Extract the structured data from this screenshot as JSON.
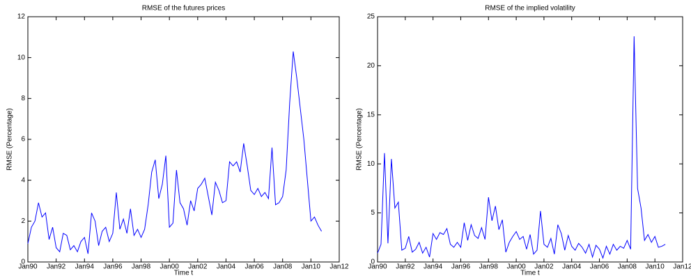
{
  "chart_data": [
    {
      "type": "line",
      "title": "RMSE of the futures prices",
      "xlabel": "Time t",
      "ylabel": "RMSE (Percentage)",
      "x": [
        1990,
        1990.25,
        1990.5,
        1990.75,
        1991,
        1991.25,
        1991.5,
        1991.75,
        1992,
        1992.25,
        1992.5,
        1992.75,
        1993,
        1993.25,
        1993.5,
        1993.75,
        1994,
        1994.25,
        1994.5,
        1994.75,
        1995,
        1995.25,
        1995.5,
        1995.75,
        1996,
        1996.25,
        1996.5,
        1996.75,
        1997,
        1997.25,
        1997.5,
        1997.75,
        1998,
        1998.25,
        1998.5,
        1998.75,
        1999,
        1999.25,
        1999.5,
        1999.75,
        2000,
        2000.25,
        2000.5,
        2000.75,
        2001,
        2001.25,
        2001.5,
        2001.75,
        2002,
        2002.25,
        2002.5,
        2002.75,
        2003,
        2003.25,
        2003.5,
        2003.75,
        2004,
        2004.25,
        2004.5,
        2004.75,
        2005,
        2005.25,
        2005.5,
        2005.75,
        2006,
        2006.25,
        2006.5,
        2006.75,
        2007,
        2007.25,
        2007.5,
        2007.75,
        2008,
        2008.25,
        2008.5,
        2008.75,
        2009,
        2009.25,
        2009.5,
        2009.75,
        2010,
        2010.25,
        2010.5,
        2010.75
      ],
      "series": [
        {
          "name": "RMSE of the futures prices",
          "color": "#0000ff",
          "values": [
            0.9,
            1.7,
            2.0,
            2.9,
            2.2,
            2.4,
            1.1,
            1.7,
            0.7,
            0.5,
            1.4,
            1.3,
            0.6,
            0.8,
            0.5,
            1.0,
            1.2,
            0.4,
            2.4,
            2.0,
            0.8,
            1.5,
            1.7,
            1.0,
            1.4,
            3.4,
            1.6,
            2.1,
            1.4,
            2.6,
            1.3,
            1.6,
            1.2,
            1.6,
            2.8,
            4.4,
            5.0,
            3.1,
            3.8,
            5.2,
            1.7,
            1.9,
            4.5,
            2.9,
            2.6,
            1.8,
            3.0,
            2.5,
            3.6,
            3.8,
            4.1,
            3.2,
            2.3,
            3.9,
            3.5,
            2.9,
            3.0,
            4.9,
            4.7,
            4.9,
            4.4,
            5.8,
            4.7,
            3.5,
            3.3,
            3.6,
            3.2,
            3.4,
            3.1,
            5.6,
            2.8,
            2.9,
            3.2,
            4.5,
            7.8,
            10.3,
            9.0,
            7.5,
            6.0,
            4.0,
            2.0,
            2.2,
            1.8,
            1.5
          ]
        }
      ],
      "xlim": [
        1990,
        2012
      ],
      "xticks": [
        {
          "value": 1990,
          "label": "Jan90"
        },
        {
          "value": 1992,
          "label": "Jan92"
        },
        {
          "value": 1994,
          "label": "Jan94"
        },
        {
          "value": 1996,
          "label": "Jan96"
        },
        {
          "value": 1998,
          "label": "Jan98"
        },
        {
          "value": 2000,
          "label": "Jan00"
        },
        {
          "value": 2002,
          "label": "Jan02"
        },
        {
          "value": 2004,
          "label": "Jan04"
        },
        {
          "value": 2006,
          "label": "Jan06"
        },
        {
          "value": 2008,
          "label": "Jan08"
        },
        {
          "value": 2010,
          "label": "Jan10"
        },
        {
          "value": 2012,
          "label": "Jan12"
        }
      ],
      "ylim": [
        0,
        12
      ],
      "yticks": [
        0,
        2,
        4,
        6,
        8,
        10,
        12
      ]
    },
    {
      "type": "line",
      "title": "RMSE of the implied volatility",
      "xlabel": "Time t",
      "ylabel": "RMSE (Percentage)",
      "x": [
        1990,
        1990.25,
        1990.5,
        1990.75,
        1991,
        1991.25,
        1991.5,
        1991.75,
        1992,
        1992.25,
        1992.5,
        1992.75,
        1993,
        1993.25,
        1993.5,
        1993.75,
        1994,
        1994.25,
        1994.5,
        1994.75,
        1995,
        1995.25,
        1995.5,
        1995.75,
        1996,
        1996.25,
        1996.5,
        1996.75,
        1997,
        1997.25,
        1997.5,
        1997.75,
        1998,
        1998.25,
        1998.5,
        1998.75,
        1999,
        1999.25,
        1999.5,
        1999.75,
        2000,
        2000.25,
        2000.5,
        2000.75,
        2001,
        2001.25,
        2001.5,
        2001.75,
        2002,
        2002.25,
        2002.5,
        2002.75,
        2003,
        2003.25,
        2003.5,
        2003.75,
        2004,
        2004.25,
        2004.5,
        2004.75,
        2005,
        2005.25,
        2005.5,
        2005.75,
        2006,
        2006.25,
        2006.5,
        2006.75,
        2007,
        2007.25,
        2007.5,
        2007.75,
        2008,
        2008.25,
        2008.5,
        2008.75,
        2009,
        2009.25,
        2009.5,
        2009.75,
        2010,
        2010.25,
        2010.5,
        2010.75
      ],
      "series": [
        {
          "name": "RMSE of the implied volatility",
          "color": "#0000ff",
          "values": [
            0.9,
            1.8,
            11.1,
            1.9,
            10.5,
            5.5,
            6.1,
            1.2,
            1.4,
            2.6,
            1.0,
            1.3,
            2.0,
            0.9,
            1.5,
            0.5,
            2.9,
            2.3,
            3.0,
            2.8,
            3.4,
            1.8,
            1.5,
            2.0,
            1.5,
            4.0,
            2.2,
            3.8,
            2.7,
            2.4,
            3.5,
            2.3,
            6.6,
            4.2,
            5.7,
            3.3,
            4.3,
            1.0,
            2.0,
            2.6,
            3.1,
            2.3,
            2.6,
            1.3,
            2.8,
            0.8,
            1.2,
            5.2,
            1.8,
            1.5,
            2.4,
            0.8,
            3.8,
            2.9,
            1.2,
            2.7,
            1.6,
            1.2,
            1.9,
            1.5,
            0.9,
            1.8,
            0.5,
            1.7,
            1.3,
            0.4,
            1.6,
            0.8,
            1.8,
            1.2,
            1.6,
            1.4,
            2.2,
            1.3,
            23.0,
            7.5,
            5.5,
            2.2,
            2.8,
            2.0,
            2.6,
            1.5,
            1.6,
            1.8
          ]
        }
      ],
      "xlim": [
        1990,
        2012
      ],
      "xticks": [
        {
          "value": 1990,
          "label": "Jan90"
        },
        {
          "value": 1992,
          "label": "Jan92"
        },
        {
          "value": 1994,
          "label": "Jan94"
        },
        {
          "value": 1996,
          "label": "Jan96"
        },
        {
          "value": 1998,
          "label": "Jan98"
        },
        {
          "value": 2000,
          "label": "Jan00"
        },
        {
          "value": 2002,
          "label": "Jan02"
        },
        {
          "value": 2004,
          "label": "Jan04"
        },
        {
          "value": 2006,
          "label": "Jan06"
        },
        {
          "value": 2008,
          "label": "Jan08"
        },
        {
          "value": 2010,
          "label": "Jan10"
        },
        {
          "value": 2012,
          "label": "Jan12"
        }
      ],
      "ylim": [
        0,
        25
      ],
      "yticks": [
        0,
        5,
        10,
        15,
        20,
        25
      ]
    }
  ]
}
